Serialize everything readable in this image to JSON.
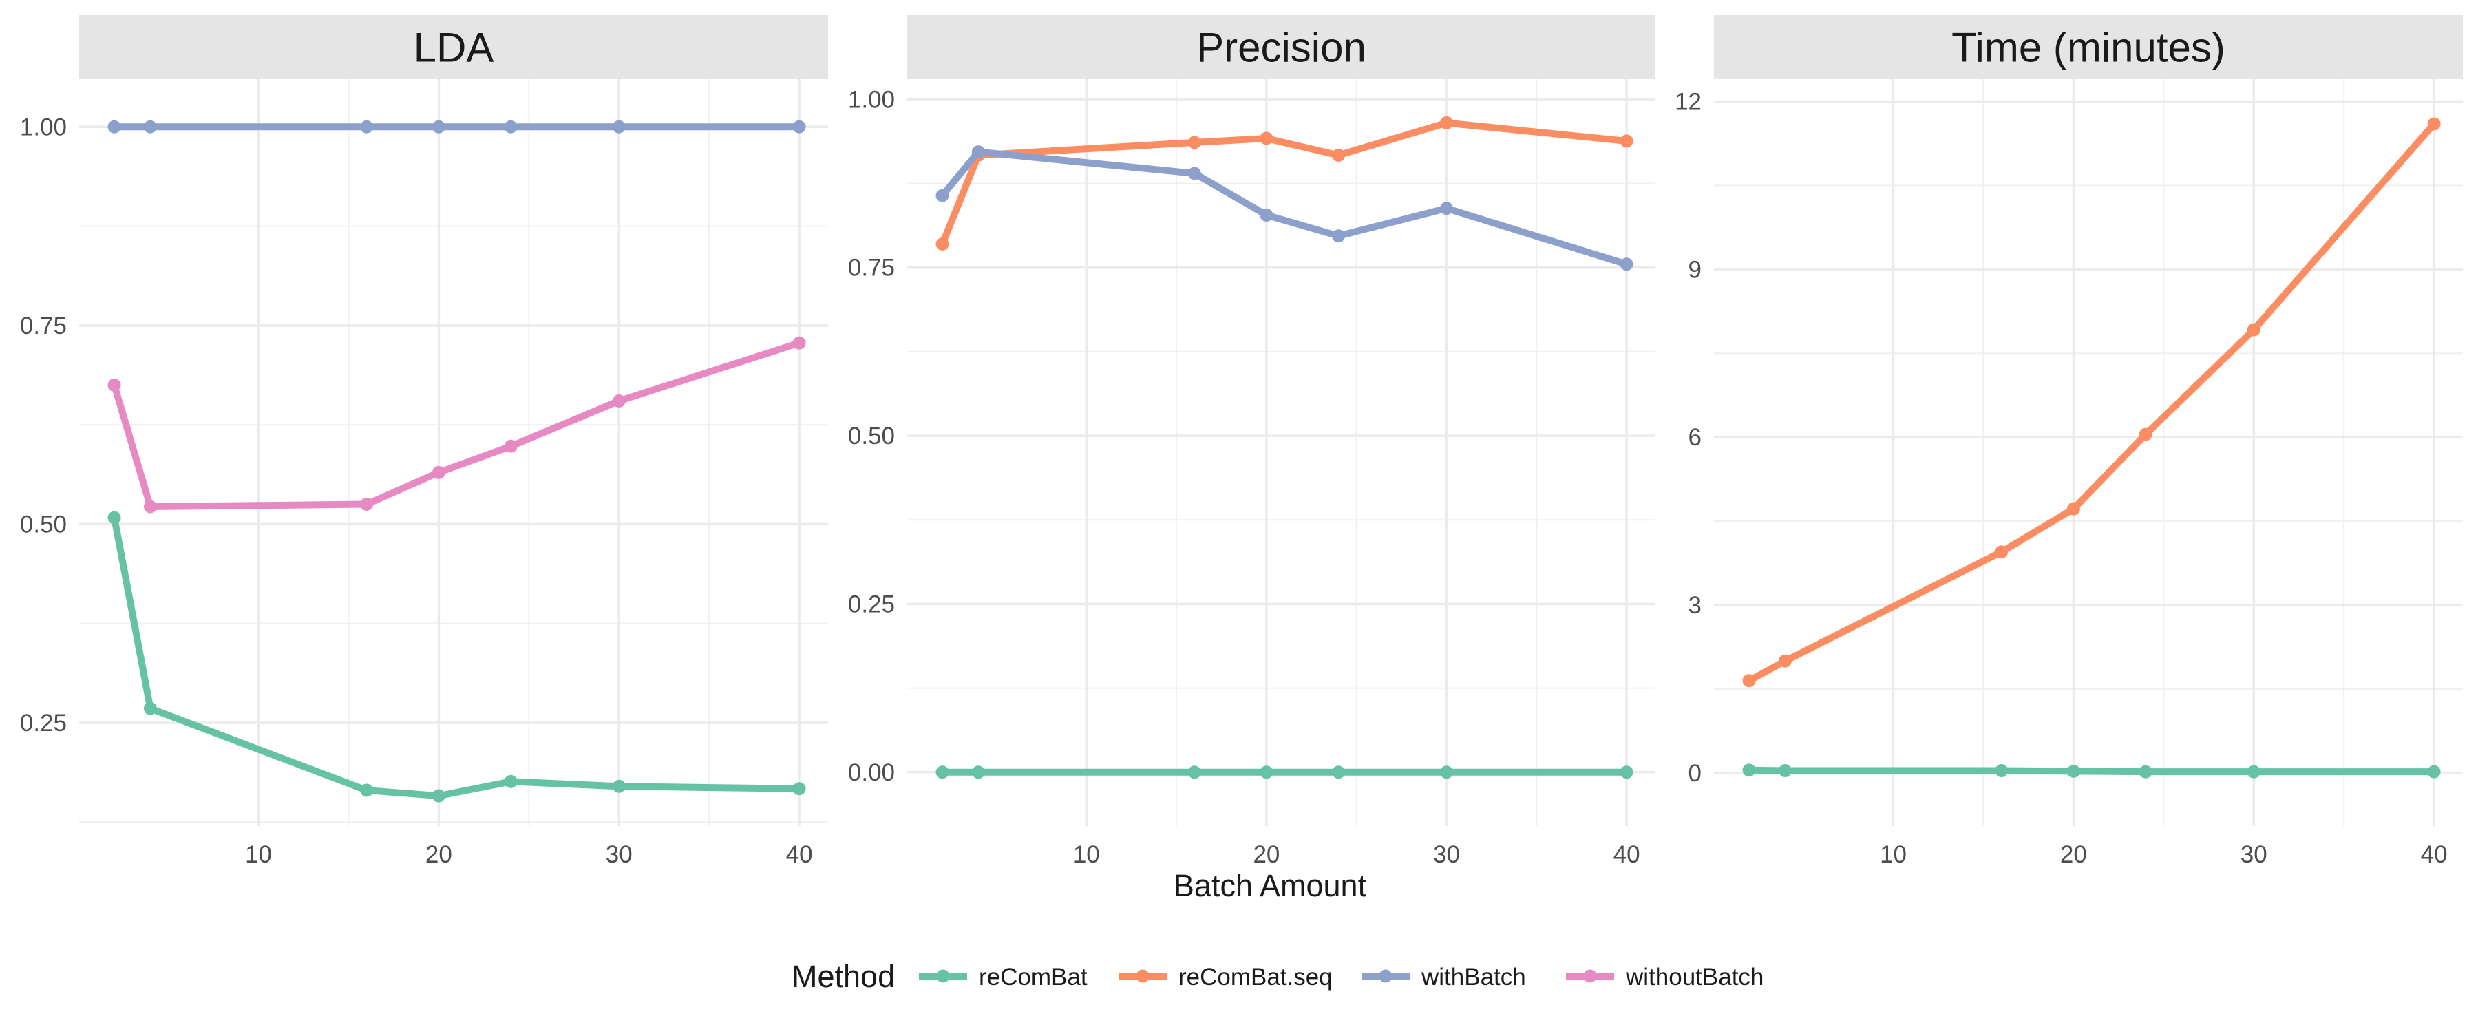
{
  "chart_data": {
    "type": "line",
    "layout": "faceted",
    "x_label": "Batch Amount",
    "x": [
      2,
      4,
      16,
      20,
      24,
      30,
      40
    ],
    "x_ticks": [
      10,
      20,
      30,
      40
    ],
    "legend": {
      "title": "Method",
      "position": "bottom",
      "items": [
        {
          "name": "reComBat",
          "color": "#66C2A5"
        },
        {
          "name": "reComBat.seq",
          "color": "#FC8D62"
        },
        {
          "name": "withBatch",
          "color": "#8DA0CB"
        },
        {
          "name": "withoutBatch",
          "color": "#E78AC3"
        }
      ]
    },
    "grid": true,
    "panels": [
      {
        "title": "LDA",
        "ylim": [
          0.12,
          1.06
        ],
        "y_ticks": [
          "0.25",
          "0.50",
          "0.75",
          "1.00"
        ],
        "series": [
          {
            "name": "reComBat",
            "color": "#66C2A5",
            "values": [
              0.508,
              0.268,
              0.165,
              0.158,
              0.176,
              0.17,
              0.167
            ]
          },
          {
            "name": "withBatch",
            "color": "#8DA0CB",
            "values": [
              1.0,
              1.0,
              1.0,
              1.0,
              1.0,
              1.0,
              1.0
            ]
          },
          {
            "name": "withoutBatch",
            "color": "#E78AC3",
            "values": [
              0.675,
              0.522,
              0.525,
              0.565,
              0.598,
              0.655,
              0.728
            ]
          }
        ]
      },
      {
        "title": "Precision",
        "ylim": [
          -0.08,
          1.03
        ],
        "y_ticks": [
          "0.00",
          "0.25",
          "0.50",
          "0.75",
          "1.00"
        ],
        "series": [
          {
            "name": "reComBat",
            "color": "#66C2A5",
            "values": [
              0.0,
              0.0,
              0.0,
              0.0,
              0.0,
              0.0,
              0.0
            ]
          },
          {
            "name": "reComBat.seq",
            "color": "#FC8D62",
            "values": [
              0.785,
              0.917,
              0.936,
              0.942,
              0.917,
              0.965,
              0.938
            ]
          },
          {
            "name": "withBatch",
            "color": "#8DA0CB",
            "values": [
              0.857,
              0.922,
              0.89,
              0.828,
              0.797,
              0.838,
              0.755
            ]
          }
        ]
      },
      {
        "title": "Time (minutes)",
        "ylim": [
          -0.95,
          12.4
        ],
        "y_ticks": [
          "0",
          "3",
          "6",
          "9",
          "12"
        ],
        "series": [
          {
            "name": "reComBat",
            "color": "#66C2A5",
            "values": [
              0.05,
              0.04,
              0.04,
              0.03,
              0.02,
              0.02,
              0.02
            ]
          },
          {
            "name": "reComBat.seq",
            "color": "#FC8D62",
            "values": [
              1.65,
              2.0,
              3.95,
              4.72,
              6.05,
              7.92,
              11.6
            ]
          }
        ]
      }
    ]
  }
}
